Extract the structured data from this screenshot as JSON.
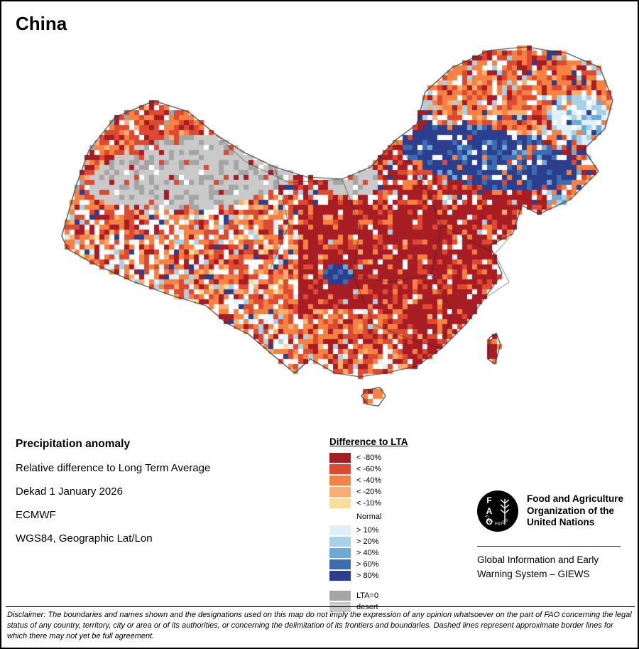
{
  "title": "China",
  "info": {
    "heading": "Precipitation anomaly",
    "subtitle": "Relative difference to Long Term Average",
    "dekad": "Dekad 1 January 2026",
    "source": "ECMWF",
    "projection": "WGS84, Geographic Lat/Lon"
  },
  "legend": {
    "title": "Difference to LTA",
    "items": [
      {
        "label": "< -80%",
        "color": "#a81c24"
      },
      {
        "label": "< -60%",
        "color": "#dd4a32"
      },
      {
        "label": "< -40%",
        "color": "#f58243"
      },
      {
        "label": "< -20%",
        "color": "#faae71"
      },
      {
        "label": "< -10%",
        "color": "#fcdd9c"
      },
      {
        "label": "Normal",
        "color": "#ffffff"
      },
      {
        "label": "> 10%",
        "color": "#dff0f7"
      },
      {
        "label": "> 20%",
        "color": "#a8d0e6"
      },
      {
        "label": "> 40%",
        "color": "#6fa8d2"
      },
      {
        "label": "> 60%",
        "color": "#3c6bb0"
      },
      {
        "label": "> 80%",
        "color": "#2b3f8e"
      },
      {
        "label": "LTA=0",
        "color": "#a5a5a5"
      },
      {
        "label": "desert",
        "color": "#cacaca"
      }
    ]
  },
  "org": {
    "logo_text": "FAO",
    "logo_motto": "FIAT PANIS",
    "name": "Food and Agriculture Organization of the United Nations",
    "giews": "Global Information and Early Warning System – GIEWS"
  },
  "disclaimer": "Disclaimer: The boundaries and names shown and the designations used on this map do not imply the expression of any opinion whatsoever on the part of FAO concerning the legal status of any country, territory, city or area or of its authorities, or concerning the delimitation of its frontiers and boundaries. Dashed lines represent approximate border lines for which there may not yet be full agreement."
}
